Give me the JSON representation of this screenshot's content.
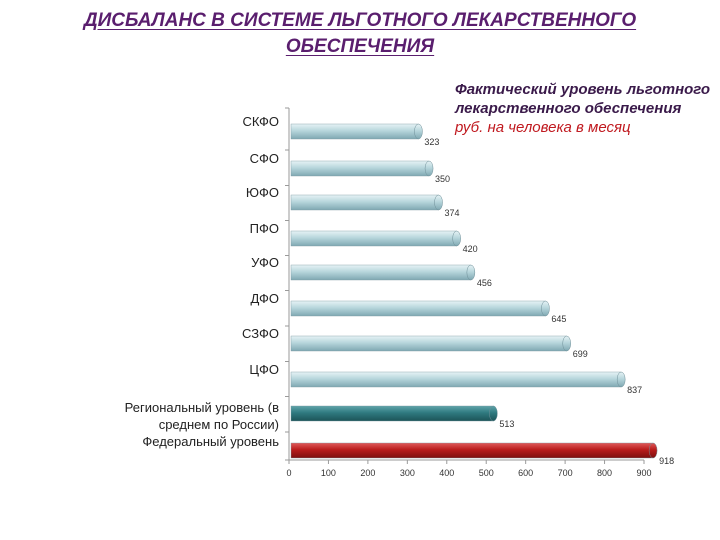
{
  "title": {
    "line1": "ДИСБАЛАНС В СИСТЕМЕ ЛЬГОТНОГО ЛЕКАРСТВЕННОГО",
    "line2": "ОБЕСПЕЧЕНИЯ"
  },
  "caption": {
    "line1": "Фактический уровень льготного лекарственного обеспечения",
    "line2": "руб. на человека в месяц"
  },
  "colors": {
    "bar_regular": "#a8ccd4",
    "bar_regional": "#2f7a80",
    "bar_federal": "#b81c1c"
  },
  "chart_data": {
    "type": "bar",
    "orientation": "horizontal",
    "categories": [
      "СКФО",
      "СФО",
      "ЮФО",
      "ПФО",
      "УФО",
      "ДФО",
      "СЗФО",
      "ЦФО",
      "Региональный уровень (в среднем по России)",
      "Федеральный уровень"
    ],
    "values": [
      323,
      350,
      374,
      420,
      456,
      645,
      699,
      837,
      513,
      918
    ],
    "value_labels": [
      "323",
      "350",
      "374",
      "420",
      "456",
      "645",
      "699",
      "837",
      "513",
      "918"
    ],
    "xlim": [
      0,
      900
    ],
    "xticks": [
      "0",
      "100",
      "200",
      "300",
      "400",
      "500",
      "600",
      "700",
      "800",
      "900"
    ],
    "xtick_values": [
      0,
      100,
      200,
      300,
      400,
      500,
      600,
      700,
      800,
      900
    ],
    "grid": false,
    "legend": "none"
  }
}
